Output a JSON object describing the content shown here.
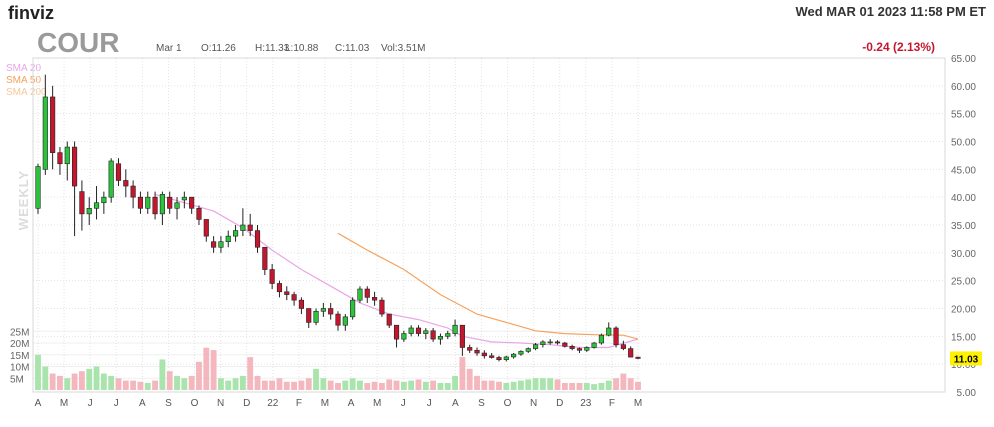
{
  "header": {
    "logo": "finviz",
    "timestamp": "Wed MAR 01 2023 11:58 PM ET"
  },
  "ticker": {
    "symbol": "COUR",
    "date": "Mar 1",
    "open": "O:11.26",
    "high": "H:11.33",
    "low": "L:10.88",
    "close": "C:11.03",
    "volume": "Vol:3.51M",
    "change": "-0.24 (2.13%)",
    "last_price_tag": "11.03"
  },
  "watermark": "WEEKLY",
  "legend": [
    {
      "name": "SMA 20",
      "color": "#e8a6e8"
    },
    {
      "name": "SMA 50",
      "color": "#f5a25d"
    },
    {
      "name": "SMA 200",
      "color": "#f5c99a"
    }
  ],
  "colors": {
    "up": "#2ac33b",
    "down": "#c4172f",
    "vol_up": "#a9e4ad",
    "vol_down": "#f4b7be",
    "change": "#c4172f",
    "grid": "#e3e3e3"
  },
  "chart_data": {
    "type": "candlestick",
    "period": "weekly",
    "ylim": [
      5,
      65
    ],
    "yticks": [
      "65.00",
      "60.00",
      "55.00",
      "50.00",
      "45.00",
      "40.00",
      "35.00",
      "30.00",
      "25.00",
      "20.00",
      "15.00",
      "10.00",
      "5.00"
    ],
    "volume_ticks": [
      "25M",
      "20M",
      "15M",
      "10M",
      "5M"
    ],
    "month_labels": [
      "A",
      "M",
      "J",
      "J",
      "A",
      "S",
      "O",
      "N",
      "D",
      "22",
      "F",
      "M",
      "A",
      "M",
      "J",
      "J",
      "A",
      "S",
      "O",
      "N",
      "D",
      "23",
      "F",
      "M"
    ],
    "ohlc": [
      [
        38,
        46,
        37,
        45.5
      ],
      [
        45,
        62,
        44,
        58
      ],
      [
        58,
        60,
        45,
        48
      ],
      [
        48,
        49,
        44,
        46
      ],
      [
        46,
        50,
        43,
        49
      ],
      [
        49,
        50,
        33,
        42
      ],
      [
        41,
        43,
        34,
        37
      ],
      [
        37,
        40,
        35,
        38
      ],
      [
        38,
        42,
        36,
        39
      ],
      [
        39,
        41,
        37,
        40
      ],
      [
        40,
        47,
        39,
        46.5
      ],
      [
        46,
        47,
        42,
        43
      ],
      [
        43,
        45,
        40,
        42
      ],
      [
        42,
        43,
        38,
        40
      ],
      [
        40,
        41,
        37,
        38
      ],
      [
        38,
        41,
        37,
        40
      ],
      [
        40,
        41,
        36,
        37
      ],
      [
        37,
        41,
        35,
        40.5
      ],
      [
        40,
        41,
        37,
        38
      ],
      [
        38,
        40,
        36,
        39
      ],
      [
        39.5,
        41,
        38,
        40
      ],
      [
        40,
        40,
        37,
        38
      ],
      [
        38,
        38.5,
        35,
        36
      ],
      [
        36,
        36,
        32,
        33
      ],
      [
        32,
        33,
        30,
        31
      ],
      [
        31,
        33,
        30,
        32
      ],
      [
        32,
        34,
        31,
        33
      ],
      [
        33,
        35,
        32,
        34
      ],
      [
        34,
        38,
        33,
        35
      ],
      [
        35,
        37,
        33,
        34
      ],
      [
        34,
        35,
        30,
        31
      ],
      [
        31,
        31,
        26,
        27
      ],
      [
        27,
        28,
        23.5,
        24.5
      ],
      [
        24.5,
        25,
        22,
        23
      ],
      [
        23,
        24,
        21.5,
        22.5
      ],
      [
        22.5,
        23,
        20.5,
        21.5
      ],
      [
        21.5,
        22,
        19,
        20
      ],
      [
        20,
        20,
        16.5,
        17.5
      ],
      [
        17.5,
        20,
        17,
        19.5
      ],
      [
        19.5,
        21,
        18.5,
        20
      ],
      [
        20,
        21,
        18,
        19
      ],
      [
        19,
        19.5,
        16,
        17
      ],
      [
        17,
        19,
        16,
        18.5
      ],
      [
        18.5,
        22,
        18,
        21.5
      ],
      [
        21.5,
        24,
        21,
        23.5
      ],
      [
        23.5,
        24,
        21,
        22
      ],
      [
        22,
        23,
        20.5,
        21.5
      ],
      [
        21.5,
        22,
        18.5,
        19
      ],
      [
        19,
        19,
        16.5,
        17
      ],
      [
        17,
        17,
        13,
        14.5
      ],
      [
        14.5,
        16,
        14,
        15.5
      ],
      [
        15.5,
        17,
        15,
        16.5
      ],
      [
        16.5,
        17,
        15,
        15.5
      ],
      [
        15.5,
        16.5,
        14.5,
        16
      ],
      [
        16,
        16.5,
        14,
        14.5
      ],
      [
        14.5,
        15.5,
        13.5,
        15
      ],
      [
        15,
        16,
        14.5,
        15.5
      ],
      [
        15.5,
        18,
        15,
        17
      ],
      [
        17,
        17,
        11.5,
        13
      ],
      [
        13,
        13.5,
        12,
        12.5
      ],
      [
        12.5,
        13,
        11.5,
        12
      ],
      [
        12,
        12.5,
        11,
        11.5
      ],
      [
        11.5,
        12,
        11,
        11.2
      ],
      [
        11.2,
        11.5,
        10.5,
        10.8
      ],
      [
        10.8,
        11.5,
        10.5,
        11.3
      ],
      [
        11.3,
        12,
        11,
        11.8
      ],
      [
        11.8,
        12.5,
        11.5,
        12.3
      ],
      [
        12.3,
        13,
        12,
        12.8
      ],
      [
        12.8,
        13.8,
        12.5,
        13.5
      ],
      [
        13.5,
        14.3,
        13,
        14
      ],
      [
        14,
        14.5,
        13.5,
        14
      ],
      [
        14,
        14.3,
        13.5,
        13.8
      ],
      [
        13.8,
        14,
        13,
        13.2
      ],
      [
        13.2,
        13.5,
        12.5,
        12.8
      ],
      [
        12.8,
        13,
        12,
        12.5
      ],
      [
        12.5,
        13.2,
        12.2,
        13
      ],
      [
        13,
        14,
        12.8,
        13.8
      ],
      [
        13.8,
        15.5,
        13.5,
        15.2
      ],
      [
        15.2,
        17.5,
        15,
        16.5
      ],
      [
        16.5,
        16.8,
        13,
        13.5
      ],
      [
        13.5,
        14.2,
        12.5,
        12.8
      ],
      [
        12.8,
        13.2,
        11.5,
        11.27
      ],
      [
        11.26,
        11.33,
        10.88,
        11.03
      ]
    ],
    "volume_millions": [
      15,
      10,
      7,
      6,
      5,
      7,
      8,
      9,
      10,
      7,
      6,
      5,
      4,
      4,
      3.5,
      3,
      4,
      13,
      8,
      6,
      5,
      6,
      12,
      18,
      17,
      5,
      4,
      5,
      6,
      14,
      6,
      4,
      4,
      5,
      3.5,
      3.5,
      4,
      5,
      9,
      5,
      4,
      3,
      4,
      5,
      4,
      3,
      3.5,
      3,
      4.5,
      4,
      3.5,
      4,
      4.5,
      3.5,
      4,
      3,
      3,
      6,
      14,
      9,
      6,
      4,
      4,
      3.5,
      3,
      3.5,
      4,
      4.5,
      5,
      5,
      5,
      4.5,
      3,
      3,
      3,
      3,
      2.5,
      3,
      4,
      5,
      7,
      5,
      3.51
    ],
    "sma20": [
      [
        16,
        40.5
      ],
      [
        20,
        39
      ],
      [
        24,
        37.5
      ],
      [
        28,
        34.5
      ],
      [
        32,
        30.5
      ],
      [
        36,
        27
      ],
      [
        40,
        24
      ],
      [
        44,
        21
      ],
      [
        48,
        19
      ],
      [
        52,
        18
      ],
      [
        56,
        16.5
      ],
      [
        58,
        15
      ],
      [
        62,
        14
      ],
      [
        66,
        13.8
      ],
      [
        70,
        13.5
      ],
      [
        74,
        13
      ],
      [
        78,
        13
      ],
      [
        82,
        14.5
      ]
    ],
    "sma50": [
      [
        41,
        33.5
      ],
      [
        45,
        30.5
      ],
      [
        50,
        27
      ],
      [
        55,
        22.5
      ],
      [
        60,
        19
      ],
      [
        64,
        17.5
      ],
      [
        68,
        16
      ],
      [
        72,
        15.5
      ],
      [
        76,
        15.3
      ],
      [
        80,
        15.2
      ],
      [
        82,
        14.5
      ]
    ]
  }
}
